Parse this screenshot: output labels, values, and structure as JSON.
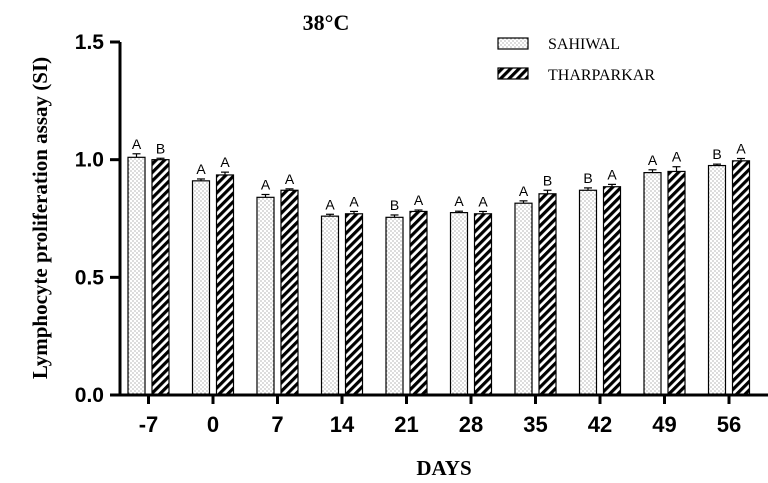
{
  "chart_data": {
    "type": "bar",
    "title": "38°C",
    "xlabel": "DAYS",
    "ylabel": "Lymphocyte proliferation assay (SI)",
    "ylim": [
      0,
      1.5
    ],
    "yticks": [
      "0.0",
      "0.5",
      "1.0",
      "1.5"
    ],
    "categories": [
      "-7",
      "0",
      "7",
      "14",
      "21",
      "28",
      "35",
      "42",
      "49",
      "56"
    ],
    "legend_position": "top-right",
    "series": [
      {
        "name": "SAHIWAL",
        "pattern": "dotted",
        "values": [
          1.01,
          0.91,
          0.84,
          0.76,
          0.755,
          0.775,
          0.815,
          0.87,
          0.945,
          0.975
        ],
        "errors": [
          0.015,
          0.008,
          0.012,
          0.008,
          0.01,
          0.006,
          0.01,
          0.01,
          0.012,
          0.006
        ],
        "letters": [
          "A",
          "A",
          "A",
          "A",
          "B",
          "A",
          "A",
          "B",
          "A",
          "B"
        ]
      },
      {
        "name": "THARPARKAR",
        "pattern": "hatched",
        "values": [
          1.0,
          0.935,
          0.87,
          0.77,
          0.78,
          0.77,
          0.855,
          0.885,
          0.95,
          0.995
        ],
        "errors": [
          0.006,
          0.012,
          0.006,
          0.01,
          0.006,
          0.01,
          0.015,
          0.01,
          0.02,
          0.01
        ],
        "letters": [
          "B",
          "A",
          "A",
          "A",
          "A",
          "A",
          "B",
          "A",
          "A",
          "A"
        ]
      }
    ],
    "colors": {
      "axis": "#000000",
      "bar_fill": "#ffffff",
      "bar_stroke": "#000000"
    }
  }
}
